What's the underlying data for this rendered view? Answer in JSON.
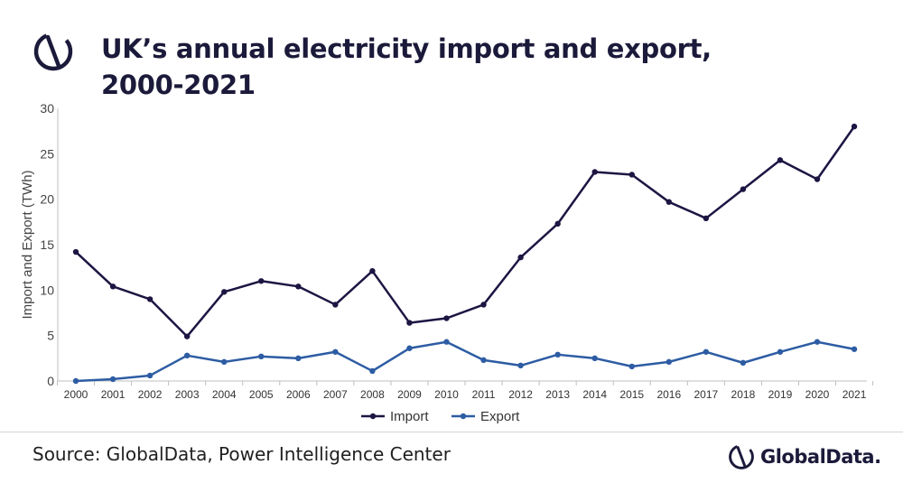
{
  "header": {
    "title_line1": "UK’s annual electricity import and export,",
    "title_line2": "2000-2021"
  },
  "footer": {
    "source": "Source: GlobalData, Power Intelligence Center",
    "brand": "GlobalData."
  },
  "icons": {
    "header_logo": "globaldata-logo-icon",
    "footer_logo": "globaldata-logo-icon"
  },
  "colors": {
    "import": "#1e1543",
    "export": "#2d5ca3",
    "brand": "#1b1a3a"
  },
  "chart_data": {
    "type": "line",
    "title": "UK’s annual electricity import and export, 2000-2021",
    "xlabel": "",
    "ylabel": "Import and Export (TWh)",
    "ylim": [
      0,
      30
    ],
    "yticks": [
      0,
      5,
      10,
      15,
      20,
      25,
      30
    ],
    "grid": false,
    "legend_position": "bottom",
    "categories": [
      "2000",
      "2001",
      "2002",
      "2003",
      "2004",
      "2005",
      "2006",
      "2007",
      "2008",
      "2009",
      "2010",
      "2011",
      "2012",
      "2013",
      "2014",
      "2015",
      "2016",
      "2017",
      "2018",
      "2019",
      "2020",
      "2021"
    ],
    "series": [
      {
        "name": "Import",
        "color": "#1e1543",
        "values": [
          14.2,
          10.4,
          9.0,
          4.9,
          9.8,
          11.0,
          10.4,
          8.4,
          12.1,
          6.4,
          6.9,
          8.4,
          13.6,
          17.3,
          23.0,
          22.7,
          19.7,
          17.9,
          21.1,
          24.3,
          22.2,
          28.0
        ]
      },
      {
        "name": "Export",
        "color": "#2d5ca3",
        "values": [
          0.0,
          0.2,
          0.6,
          2.8,
          2.1,
          2.7,
          2.5,
          3.2,
          1.1,
          3.6,
          4.3,
          2.3,
          1.7,
          2.9,
          2.5,
          1.6,
          2.1,
          3.2,
          2.0,
          3.2,
          4.3,
          3.5
        ]
      }
    ]
  }
}
